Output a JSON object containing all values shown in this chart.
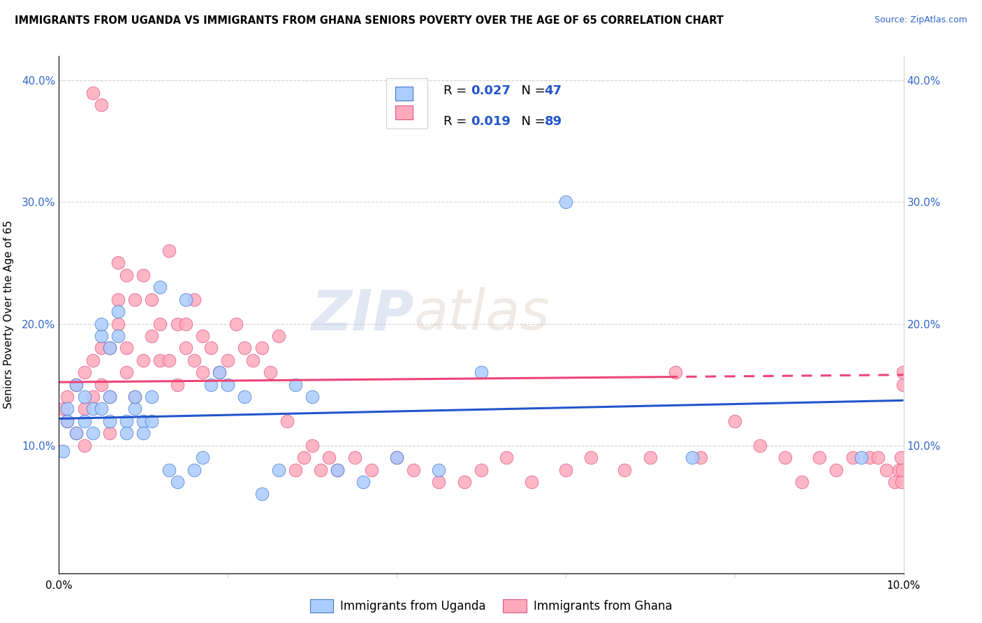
{
  "title": "IMMIGRANTS FROM UGANDA VS IMMIGRANTS FROM GHANA SENIORS POVERTY OVER THE AGE OF 65 CORRELATION CHART",
  "source": "Source: ZipAtlas.com",
  "ylabel": "Seniors Poverty Over the Age of 65",
  "xlim": [
    0.0,
    0.1
  ],
  "ylim": [
    -0.005,
    0.42
  ],
  "yticks": [
    0.1,
    0.2,
    0.3,
    0.4
  ],
  "xticks": [
    0.0,
    0.02,
    0.04,
    0.06,
    0.08,
    0.1
  ],
  "color_uganda": "#aaccff",
  "color_ghana": "#ffaabb",
  "color_uganda_line": "#2255cc",
  "color_ghana_line": "#ee4477",
  "watermark_zip": "ZIP",
  "watermark_atlas": "atlas",
  "uganda_line_y0": 0.122,
  "uganda_line_y1": 0.137,
  "ghana_line_y0": 0.152,
  "ghana_line_y1": 0.158,
  "uganda_x": [
    0.0005,
    0.001,
    0.001,
    0.002,
    0.002,
    0.003,
    0.003,
    0.004,
    0.004,
    0.005,
    0.005,
    0.005,
    0.006,
    0.006,
    0.006,
    0.007,
    0.007,
    0.008,
    0.008,
    0.009,
    0.009,
    0.01,
    0.01,
    0.011,
    0.011,
    0.012,
    0.013,
    0.014,
    0.015,
    0.016,
    0.017,
    0.018,
    0.019,
    0.02,
    0.022,
    0.024,
    0.026,
    0.028,
    0.03,
    0.033,
    0.036,
    0.04,
    0.045,
    0.05,
    0.06,
    0.075,
    0.095
  ],
  "uganda_y": [
    0.095,
    0.13,
    0.12,
    0.11,
    0.15,
    0.12,
    0.14,
    0.11,
    0.13,
    0.13,
    0.19,
    0.2,
    0.12,
    0.14,
    0.18,
    0.19,
    0.21,
    0.12,
    0.11,
    0.13,
    0.14,
    0.12,
    0.11,
    0.12,
    0.14,
    0.23,
    0.08,
    0.07,
    0.22,
    0.08,
    0.09,
    0.15,
    0.16,
    0.15,
    0.14,
    0.06,
    0.08,
    0.15,
    0.14,
    0.08,
    0.07,
    0.09,
    0.08,
    0.16,
    0.3,
    0.09,
    0.09
  ],
  "ghana_x": [
    0.0005,
    0.001,
    0.001,
    0.002,
    0.002,
    0.003,
    0.003,
    0.003,
    0.004,
    0.004,
    0.004,
    0.005,
    0.005,
    0.005,
    0.006,
    0.006,
    0.006,
    0.007,
    0.007,
    0.007,
    0.008,
    0.008,
    0.008,
    0.009,
    0.009,
    0.01,
    0.01,
    0.011,
    0.011,
    0.012,
    0.012,
    0.013,
    0.013,
    0.014,
    0.014,
    0.015,
    0.015,
    0.016,
    0.016,
    0.017,
    0.017,
    0.018,
    0.019,
    0.02,
    0.021,
    0.022,
    0.023,
    0.024,
    0.025,
    0.026,
    0.027,
    0.028,
    0.029,
    0.03,
    0.031,
    0.032,
    0.033,
    0.035,
    0.037,
    0.04,
    0.042,
    0.045,
    0.048,
    0.05,
    0.053,
    0.056,
    0.06,
    0.063,
    0.067,
    0.07,
    0.073,
    0.076,
    0.08,
    0.083,
    0.086,
    0.088,
    0.09,
    0.092,
    0.094,
    0.096,
    0.097,
    0.098,
    0.099,
    0.0995,
    0.0997,
    0.0998,
    0.0999,
    0.09995,
    0.09999
  ],
  "ghana_y": [
    0.13,
    0.12,
    0.14,
    0.15,
    0.11,
    0.16,
    0.13,
    0.1,
    0.17,
    0.14,
    0.39,
    0.18,
    0.15,
    0.38,
    0.14,
    0.11,
    0.18,
    0.25,
    0.22,
    0.2,
    0.18,
    0.16,
    0.24,
    0.14,
    0.22,
    0.24,
    0.17,
    0.22,
    0.19,
    0.2,
    0.17,
    0.26,
    0.17,
    0.2,
    0.15,
    0.2,
    0.18,
    0.22,
    0.17,
    0.19,
    0.16,
    0.18,
    0.16,
    0.17,
    0.2,
    0.18,
    0.17,
    0.18,
    0.16,
    0.19,
    0.12,
    0.08,
    0.09,
    0.1,
    0.08,
    0.09,
    0.08,
    0.09,
    0.08,
    0.09,
    0.08,
    0.07,
    0.07,
    0.08,
    0.09,
    0.07,
    0.08,
    0.09,
    0.08,
    0.09,
    0.16,
    0.09,
    0.12,
    0.1,
    0.09,
    0.07,
    0.09,
    0.08,
    0.09,
    0.09,
    0.09,
    0.08,
    0.07,
    0.08,
    0.09,
    0.07,
    0.08,
    0.15,
    0.16
  ]
}
